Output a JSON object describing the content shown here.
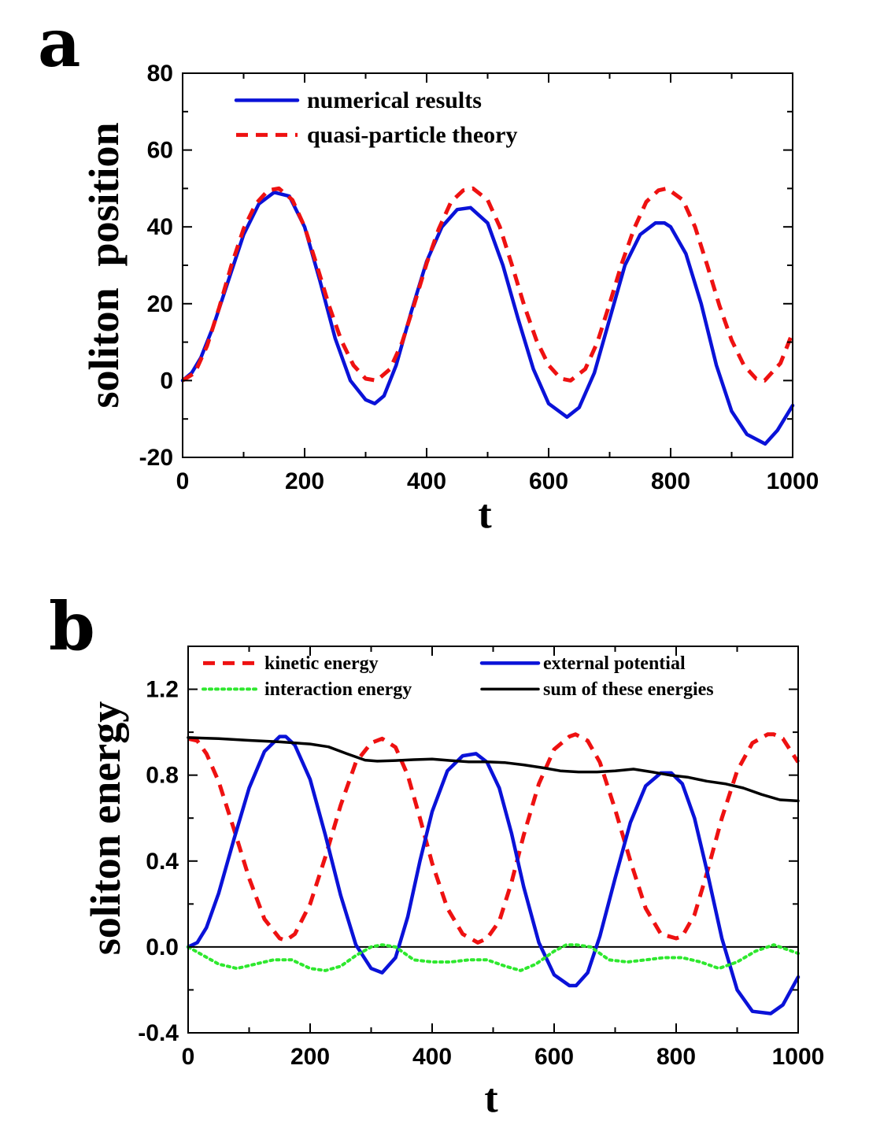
{
  "chart_data": [
    {
      "panel_label": "a",
      "type": "line",
      "title": "",
      "xlabel": "t",
      "ylabel": "soliton  position",
      "xlim": [
        0,
        1000
      ],
      "ylim": [
        -20,
        80
      ],
      "xticks": [
        0,
        200,
        400,
        600,
        800,
        1000
      ],
      "yticks": [
        -20,
        0,
        20,
        40,
        60,
        80
      ],
      "xtick_labels": [
        "0",
        "200",
        "400",
        "600",
        "800",
        "1000"
      ],
      "ytick_labels": [
        "-20",
        "0",
        "20",
        "40",
        "60",
        "80"
      ],
      "grid": false,
      "legend_position": "top-left",
      "series": [
        {
          "name": "numerical results",
          "color": "#0a12d8",
          "style": "solid",
          "x": [
            0,
            15,
            30,
            50,
            75,
            100,
            125,
            150,
            175,
            200,
            225,
            250,
            275,
            300,
            315,
            330,
            350,
            375,
            400,
            425,
            450,
            472,
            500,
            525,
            550,
            575,
            600,
            630,
            650,
            675,
            700,
            725,
            750,
            775,
            790,
            800,
            825,
            850,
            875,
            900,
            925,
            955,
            975,
            1000
          ],
          "y": [
            0,
            2,
            6,
            14,
            26,
            38,
            46,
            49,
            48,
            40,
            26,
            11,
            0,
            -5,
            -6,
            -4,
            4,
            18,
            31,
            40,
            44.5,
            45,
            41,
            30,
            16,
            3,
            -6,
            -9.5,
            -7,
            2,
            16,
            30,
            38,
            41,
            41,
            40,
            33,
            20,
            4,
            -8,
            -14,
            -16.5,
            -13,
            -6.5
          ]
        },
        {
          "name": "quasi-particle theory",
          "color": "#ee1111",
          "style": "dashed",
          "x": [
            0,
            20,
            40,
            60,
            80,
            100,
            120,
            140,
            158,
            180,
            200,
            220,
            240,
            260,
            280,
            300,
            318,
            340,
            360,
            380,
            400,
            420,
            440,
            460,
            476,
            500,
            520,
            540,
            560,
            580,
            600,
            620,
            636,
            660,
            680,
            700,
            720,
            740,
            760,
            780,
            794,
            820,
            840,
            860,
            880,
            900,
            920,
            940,
            954,
            980,
            1000
          ],
          "y": [
            0,
            2,
            9,
            19,
            30,
            39.5,
            46,
            49.5,
            50,
            47,
            40,
            30,
            19.5,
            10.5,
            4,
            0.5,
            0,
            3,
            10,
            20,
            30.5,
            39.5,
            46.5,
            49.5,
            50,
            47,
            40,
            30,
            19.5,
            10.5,
            4,
            0.5,
            0,
            3,
            10,
            20,
            30.5,
            39.5,
            46.5,
            49.5,
            50,
            47,
            40,
            30,
            19.5,
            10.5,
            4,
            0.5,
            0,
            4.5,
            12.5
          ]
        }
      ]
    },
    {
      "panel_label": "b",
      "type": "line",
      "title": "",
      "xlabel": "t",
      "ylabel": "soliton energy",
      "xlim": [
        0,
        1000
      ],
      "ylim": [
        -0.4,
        1.4
      ],
      "xticks": [
        0,
        200,
        400,
        600,
        800,
        1000
      ],
      "yticks": [
        -0.4,
        0.0,
        0.4,
        0.8,
        1.2
      ],
      "xtick_labels": [
        "0",
        "200",
        "400",
        "600",
        "800",
        "1000"
      ],
      "ytick_labels": [
        "-0.4",
        "0.0",
        "0.4",
        "0.8",
        "1.2"
      ],
      "grid": false,
      "legend_position": "top",
      "reference_line": 0,
      "series": [
        {
          "name": "kinetic energy",
          "color": "#ee1111",
          "style": "dashed",
          "x": [
            0,
            15,
            30,
            50,
            75,
            100,
            125,
            150,
            160,
            175,
            200,
            225,
            250,
            275,
            300,
            318,
            340,
            360,
            380,
            400,
            425,
            450,
            475,
            490,
            510,
            530,
            550,
            575,
            600,
            625,
            635,
            655,
            675,
            700,
            725,
            750,
            775,
            800,
            810,
            830,
            850,
            875,
            900,
            925,
            950,
            960,
            975,
            1000
          ],
          "y": [
            0.97,
            0.96,
            0.9,
            0.77,
            0.55,
            0.32,
            0.13,
            0.04,
            0.03,
            0.06,
            0.2,
            0.42,
            0.66,
            0.86,
            0.95,
            0.97,
            0.93,
            0.8,
            0.6,
            0.39,
            0.18,
            0.06,
            0.02,
            0.04,
            0.12,
            0.3,
            0.52,
            0.76,
            0.92,
            0.98,
            0.99,
            0.96,
            0.86,
            0.64,
            0.4,
            0.18,
            0.06,
            0.04,
            0.05,
            0.15,
            0.34,
            0.6,
            0.82,
            0.95,
            0.99,
            0.99,
            0.97,
            0.86
          ]
        },
        {
          "name": "external potential",
          "color": "#0a12d8",
          "style": "solid",
          "x": [
            0,
            15,
            30,
            50,
            75,
            100,
            125,
            150,
            160,
            175,
            200,
            225,
            250,
            275,
            300,
            318,
            340,
            360,
            380,
            400,
            425,
            450,
            472,
            490,
            510,
            530,
            550,
            575,
            600,
            625,
            636,
            655,
            675,
            700,
            725,
            750,
            775,
            792,
            810,
            830,
            850,
            875,
            900,
            925,
            955,
            975,
            1000
          ],
          "y": [
            0,
            0.02,
            0.09,
            0.25,
            0.5,
            0.74,
            0.91,
            0.98,
            0.98,
            0.94,
            0.78,
            0.52,
            0.24,
            0.01,
            -0.1,
            -0.12,
            -0.05,
            0.14,
            0.4,
            0.63,
            0.82,
            0.89,
            0.9,
            0.86,
            0.74,
            0.53,
            0.28,
            0.02,
            -0.13,
            -0.18,
            -0.18,
            -0.12,
            0.05,
            0.32,
            0.58,
            0.75,
            0.81,
            0.81,
            0.76,
            0.6,
            0.36,
            0.04,
            -0.2,
            -0.3,
            -0.31,
            -0.27,
            -0.14
          ]
        },
        {
          "name": "interaction energy",
          "color": "#2ee82e",
          "style": "dotted",
          "x": [
            0,
            25,
            50,
            80,
            110,
            140,
            170,
            200,
            225,
            250,
            275,
            300,
            318,
            340,
            370,
            400,
            430,
            460,
            490,
            520,
            545,
            570,
            600,
            620,
            636,
            660,
            690,
            720,
            750,
            780,
            810,
            840,
            870,
            900,
            930,
            960,
            980,
            1000
          ],
          "y": [
            0,
            -0.04,
            -0.08,
            -0.1,
            -0.08,
            -0.06,
            -0.06,
            -0.1,
            -0.11,
            -0.09,
            -0.04,
            0,
            0.01,
            0,
            -0.06,
            -0.07,
            -0.07,
            -0.06,
            -0.06,
            -0.09,
            -0.11,
            -0.08,
            -0.02,
            0.01,
            0.01,
            0,
            -0.06,
            -0.07,
            -0.06,
            -0.05,
            -0.05,
            -0.07,
            -0.1,
            -0.07,
            -0.02,
            0.01,
            -0.01,
            -0.03
          ]
        },
        {
          "name": "sum of these energies",
          "color": "#000000",
          "style": "solid",
          "x": [
            0,
            50,
            100,
            150,
            200,
            230,
            260,
            290,
            310,
            340,
            370,
            400,
            430,
            460,
            490,
            520,
            550,
            580,
            610,
            640,
            670,
            700,
            730,
            760,
            790,
            820,
            850,
            880,
            910,
            940,
            970,
            1000
          ],
          "y": [
            0.975,
            0.97,
            0.962,
            0.955,
            0.945,
            0.932,
            0.9,
            0.87,
            0.865,
            0.868,
            0.872,
            0.875,
            0.868,
            0.862,
            0.862,
            0.858,
            0.848,
            0.835,
            0.82,
            0.815,
            0.815,
            0.82,
            0.828,
            0.815,
            0.8,
            0.79,
            0.772,
            0.76,
            0.74,
            0.71,
            0.685,
            0.68
          ]
        }
      ]
    }
  ]
}
